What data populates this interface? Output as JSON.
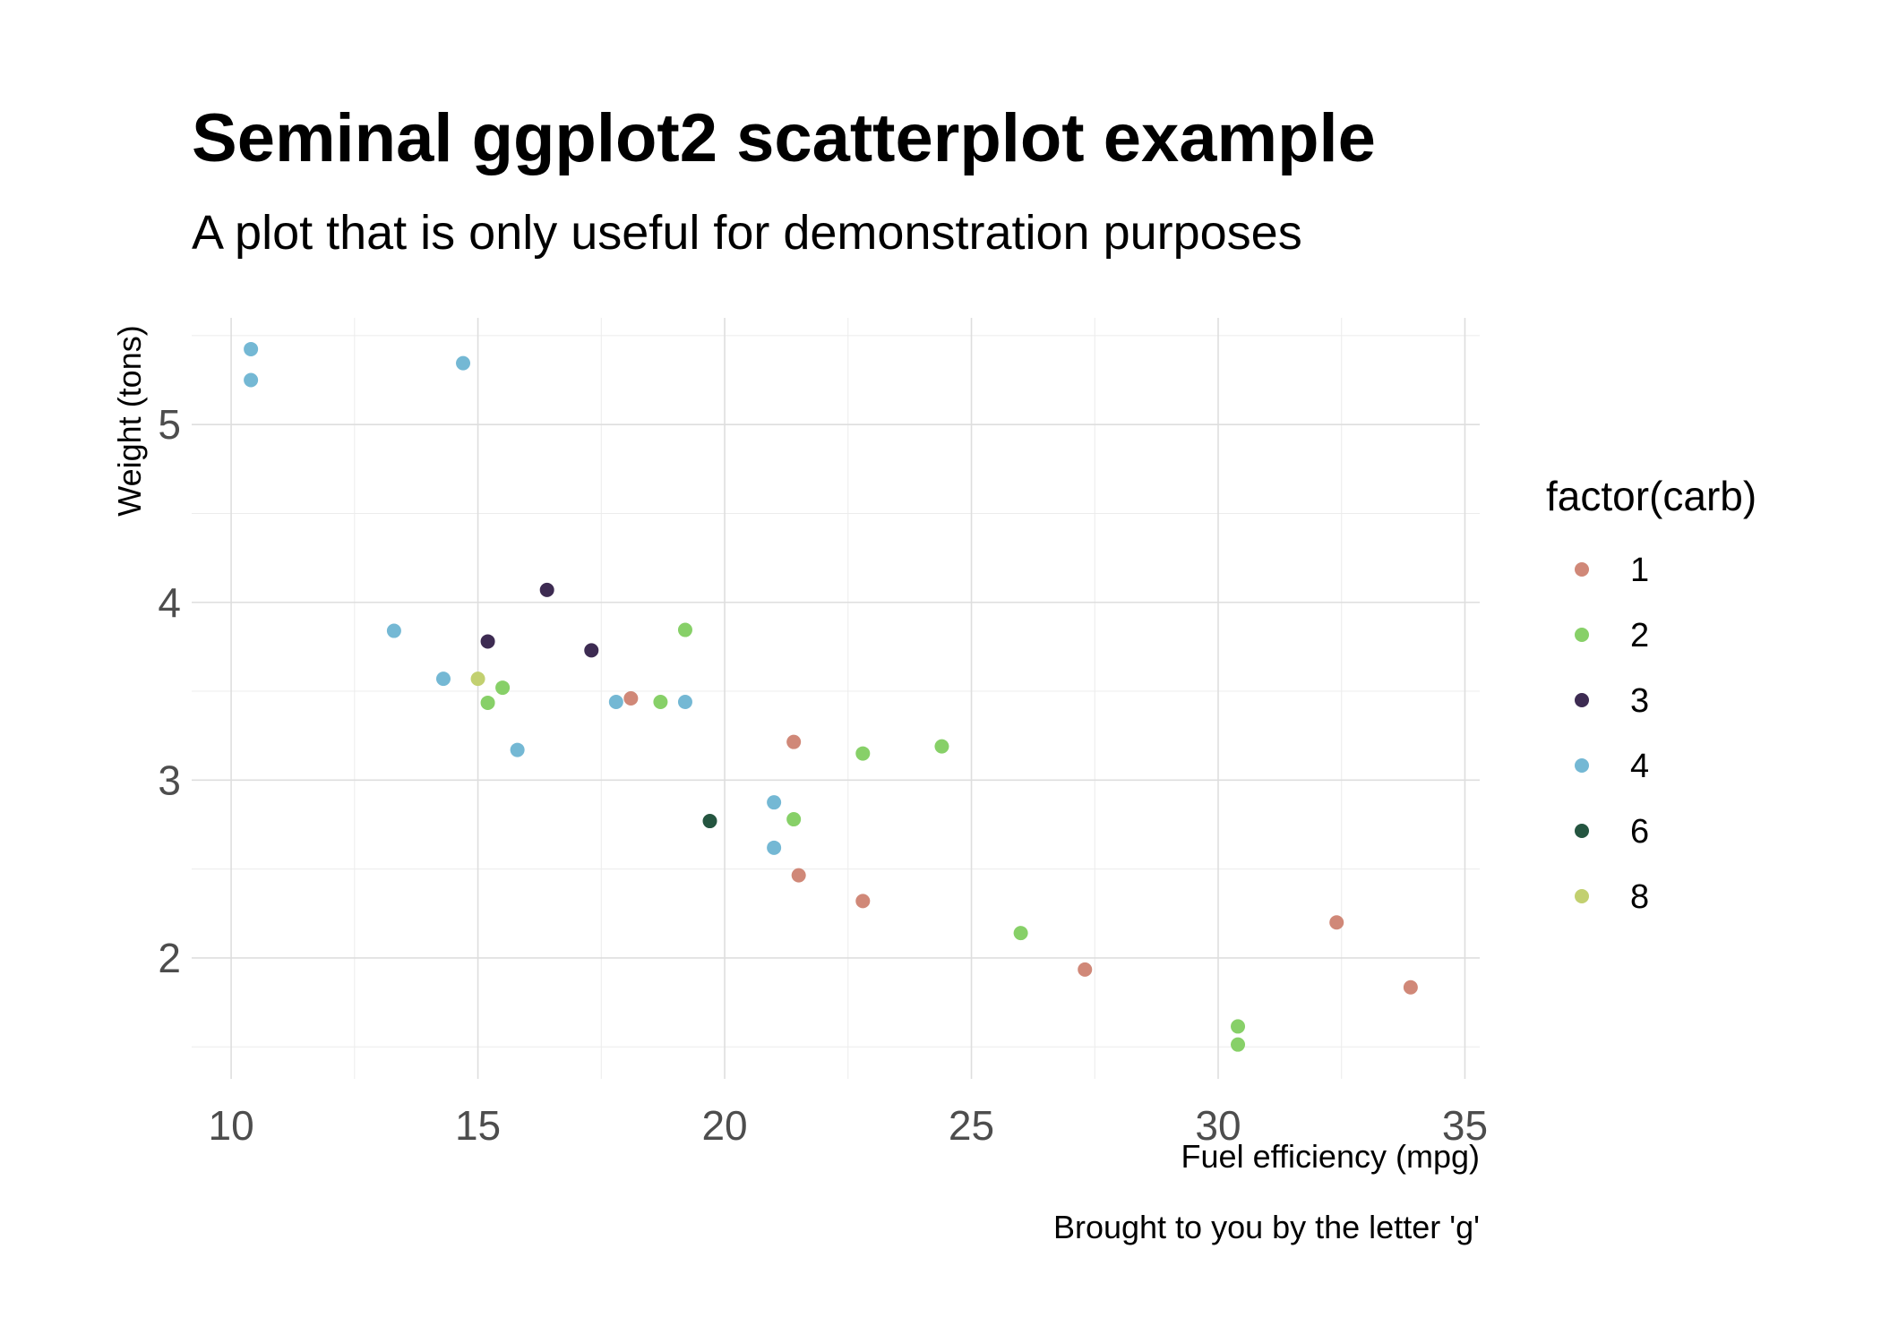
{
  "chart_data": {
    "type": "scatter",
    "title": "Seminal ggplot2 scatterplot example",
    "subtitle": "A plot that is only useful for demonstration purposes",
    "xlabel": "Fuel efficiency (mpg)",
    "ylabel": "Weight (tons)",
    "caption": "Brought to you by the letter 'g'",
    "xlim": [
      9.2,
      35.3
    ],
    "ylim": [
      1.32,
      5.6
    ],
    "xticks": [
      10,
      15,
      20,
      25,
      30,
      35
    ],
    "yticks": [
      2,
      3,
      4,
      5
    ],
    "grid": true,
    "legend": {
      "title": "factor(carb)",
      "position": "right",
      "entries": [
        {
          "label": "1",
          "color": "#d08878"
        },
        {
          "label": "2",
          "color": "#87d068"
        },
        {
          "label": "3",
          "color": "#3d2b52"
        },
        {
          "label": "4",
          "color": "#74b8d4"
        },
        {
          "label": "6",
          "color": "#245540"
        },
        {
          "label": "8",
          "color": "#c2d070"
        }
      ]
    },
    "series": [
      {
        "name": "1",
        "color": "#d08878",
        "points": [
          {
            "x": 22.8,
            "y": 2.32
          },
          {
            "x": 21.4,
            "y": 3.215
          },
          {
            "x": 18.1,
            "y": 3.46
          },
          {
            "x": 32.4,
            "y": 2.2
          },
          {
            "x": 33.9,
            "y": 1.835
          },
          {
            "x": 21.5,
            "y": 2.465
          },
          {
            "x": 27.3,
            "y": 1.935
          }
        ]
      },
      {
        "name": "2",
        "color": "#87d068",
        "points": [
          {
            "x": 18.7,
            "y": 3.44
          },
          {
            "x": 24.4,
            "y": 3.19
          },
          {
            "x": 22.8,
            "y": 3.15
          },
          {
            "x": 19.2,
            "y": 3.845
          },
          {
            "x": 30.4,
            "y": 1.615
          },
          {
            "x": 15.5,
            "y": 3.52
          },
          {
            "x": 15.2,
            "y": 3.435
          },
          {
            "x": 26.0,
            "y": 2.14
          },
          {
            "x": 30.4,
            "y": 1.513
          },
          {
            "x": 21.4,
            "y": 2.78
          }
        ]
      },
      {
        "name": "3",
        "color": "#3d2b52",
        "points": [
          {
            "x": 16.4,
            "y": 4.07
          },
          {
            "x": 17.3,
            "y": 3.73
          },
          {
            "x": 15.2,
            "y": 3.78
          }
        ]
      },
      {
        "name": "4",
        "color": "#74b8d4",
        "points": [
          {
            "x": 21.0,
            "y": 2.62
          },
          {
            "x": 21.0,
            "y": 2.875
          },
          {
            "x": 14.3,
            "y": 3.57
          },
          {
            "x": 19.2,
            "y": 3.44
          },
          {
            "x": 17.8,
            "y": 3.44
          },
          {
            "x": 10.4,
            "y": 5.25
          },
          {
            "x": 10.4,
            "y": 5.424
          },
          {
            "x": 14.7,
            "y": 5.345
          },
          {
            "x": 13.3,
            "y": 3.84
          },
          {
            "x": 15.8,
            "y": 3.17
          }
        ]
      },
      {
        "name": "6",
        "color": "#245540",
        "points": [
          {
            "x": 19.7,
            "y": 2.77
          }
        ]
      },
      {
        "name": "8",
        "color": "#c2d070",
        "points": [
          {
            "x": 15.0,
            "y": 3.57
          }
        ]
      }
    ]
  }
}
